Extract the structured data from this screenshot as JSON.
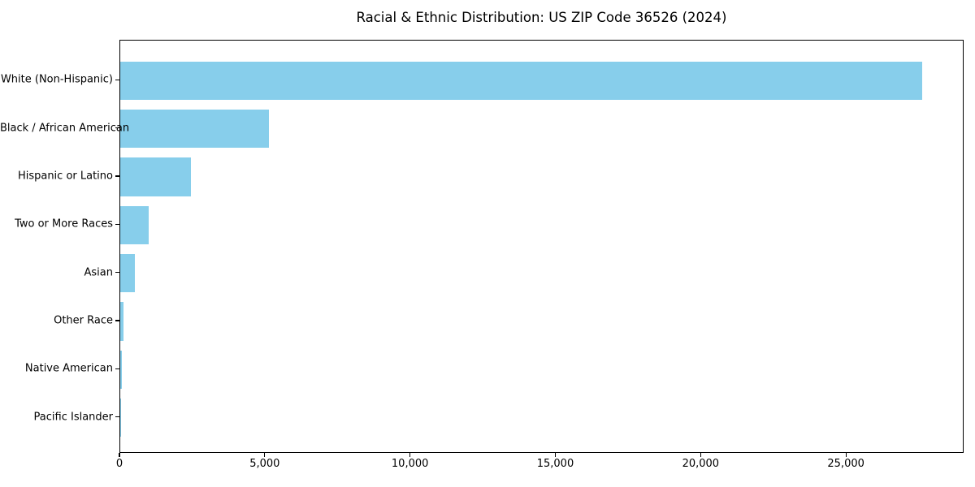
{
  "chart_data": {
    "type": "bar",
    "orientation": "horizontal",
    "title": "Racial & Ethnic Distribution: US ZIP Code 36526 (2024)",
    "categories": [
      "White (Non-Hispanic)",
      "Black / African American",
      "Hispanic or Latino",
      "Two or More Races",
      "Asian",
      "Other Race",
      "Native American",
      "Pacific Islander"
    ],
    "values": [
      27600,
      5120,
      2430,
      980,
      515,
      110,
      55,
      15
    ],
    "xlabel": "",
    "ylabel": "",
    "xlim": [
      0,
      29050
    ],
    "x_ticks": [
      0,
      5000,
      10000,
      15000,
      20000,
      25000
    ],
    "x_tick_labels": [
      "0",
      "5,000",
      "10,000",
      "15,000",
      "20,000",
      "25,000"
    ],
    "bar_color": "#87CEEB",
    "axis_color": "#000000",
    "background_color": "#FFFFFF",
    "grid": false,
    "legend": false
  }
}
